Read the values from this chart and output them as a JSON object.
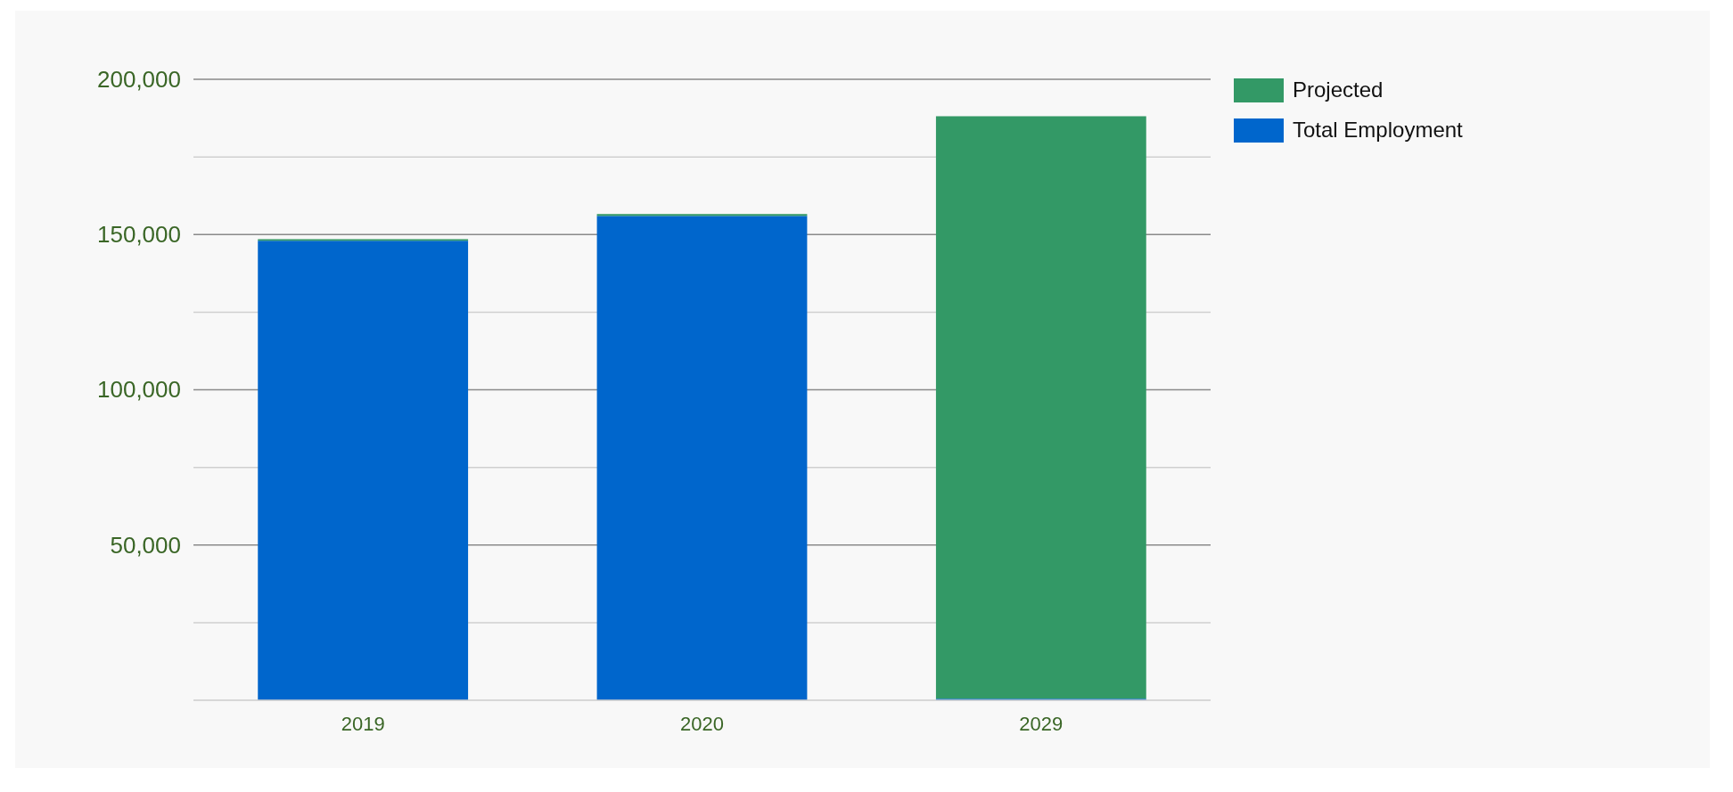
{
  "chart_data": {
    "type": "bar",
    "stacked": true,
    "categories": [
      "2019",
      "2020",
      "2029"
    ],
    "series": [
      {
        "name": "Total Employment",
        "color": "#0066cc",
        "values": [
          148000,
          156000,
          500
        ]
      },
      {
        "name": "Projected",
        "color": "#339966",
        "values": [
          500,
          600,
          187600
        ]
      }
    ],
    "ylim": [
      0,
      200000
    ],
    "yticks": [
      {
        "value": 25000,
        "label": null
      },
      {
        "value": 50000,
        "label": "50,000"
      },
      {
        "value": 75000,
        "label": null
      },
      {
        "value": 100000,
        "label": "100,000"
      },
      {
        "value": 125000,
        "label": null
      },
      {
        "value": 150000,
        "label": "150,000"
      },
      {
        "value": 175000,
        "label": null
      },
      {
        "value": 200000,
        "label": "200,000"
      }
    ],
    "grid": true,
    "legend": "top right"
  }
}
